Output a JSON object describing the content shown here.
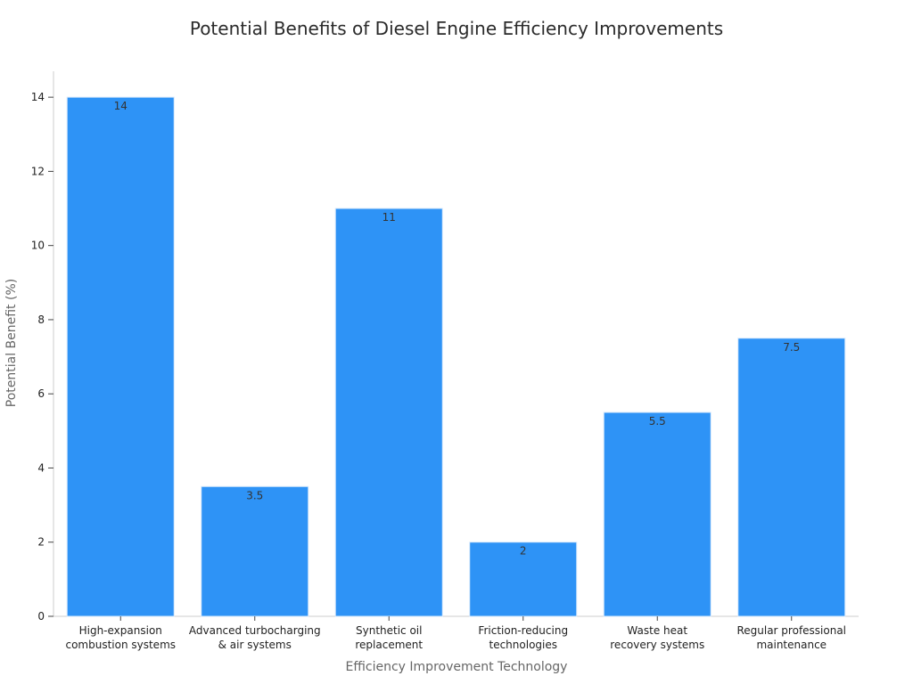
{
  "chart_data": {
    "type": "bar",
    "title": "Potential Benefits of Diesel Engine Efficiency Improvements",
    "xlabel": "Efficiency Improvement Technology",
    "ylabel": "Potential Benefit (%)",
    "categories": [
      [
        "High-expansion",
        "combustion systems"
      ],
      [
        "Advanced turbocharging",
        "& air systems"
      ],
      [
        "Synthetic oil",
        "replacement"
      ],
      [
        "Friction-reducing",
        "technologies"
      ],
      [
        "Waste heat",
        "recovery systems"
      ],
      [
        "Regular professional",
        "maintenance"
      ]
    ],
    "values": [
      14,
      3.5,
      11,
      2,
      5.5,
      7.5
    ],
    "value_labels": [
      "14",
      "3.5",
      "11",
      "2",
      "5.5",
      "7.5"
    ],
    "ylim": [
      0,
      14.7
    ],
    "yticks": [
      0,
      2,
      4,
      6,
      8,
      10,
      12,
      14
    ],
    "grid": false,
    "colors": {
      "bar": "#2e93f6",
      "bar_edge": "#d6e8fb",
      "axis": "#cccccc",
      "tick_text": "#222222",
      "value_text": "#333333"
    }
  }
}
